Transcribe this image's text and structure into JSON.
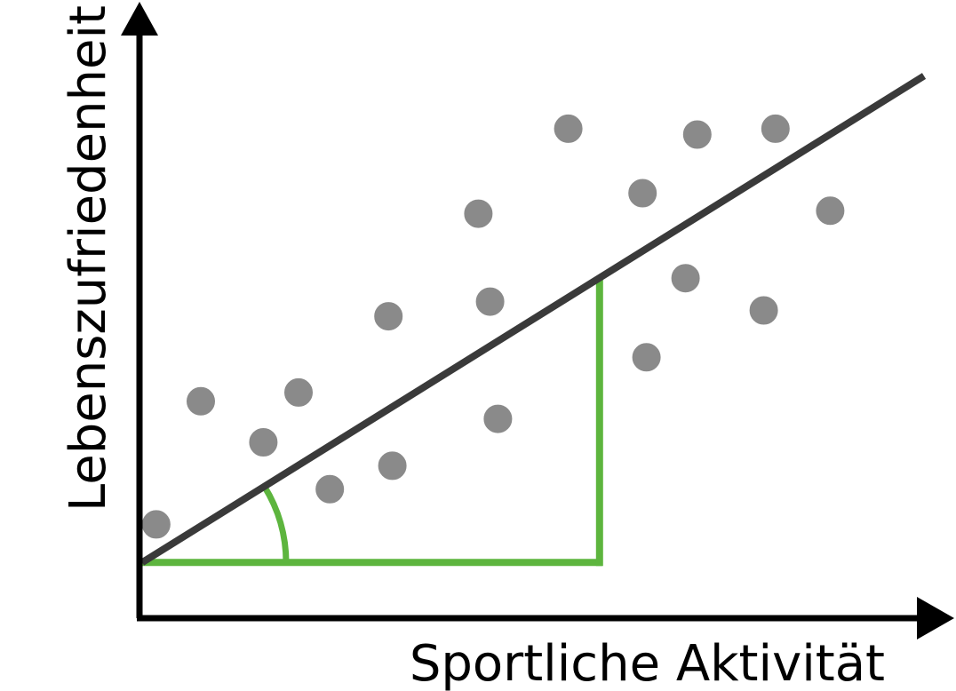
{
  "chart_data": {
    "type": "scatter",
    "xlabel": "Sportliche Aktivität",
    "ylabel": "Lebenszufriedenheit",
    "grid": false,
    "ticks": false,
    "xlim": [
      0,
      100
    ],
    "ylim": [
      0,
      100
    ],
    "points": [
      {
        "x": 1.8,
        "y": 16.0
      },
      {
        "x": 7.5,
        "y": 37.0
      },
      {
        "x": 15.5,
        "y": 30.0
      },
      {
        "x": 20.0,
        "y": 38.5
      },
      {
        "x": 24.0,
        "y": 22.0
      },
      {
        "x": 32.0,
        "y": 26.0
      },
      {
        "x": 31.5,
        "y": 51.5
      },
      {
        "x": 43.0,
        "y": 69.0
      },
      {
        "x": 44.5,
        "y": 54.0
      },
      {
        "x": 45.5,
        "y": 34.0
      },
      {
        "x": 54.5,
        "y": 83.5
      },
      {
        "x": 64.0,
        "y": 72.5
      },
      {
        "x": 64.5,
        "y": 44.5
      },
      {
        "x": 69.5,
        "y": 58.0
      },
      {
        "x": 71.0,
        "y": 82.5
      },
      {
        "x": 79.5,
        "y": 52.5
      },
      {
        "x": 81.0,
        "y": 83.5
      },
      {
        "x": 88.0,
        "y": 69.5
      }
    ],
    "regression_line": {
      "x": [
        0,
        100
      ],
      "y": [
        9.5,
        92.5
      ]
    },
    "slope_triangle": {
      "x_start": 0,
      "x_end": 58.5
    }
  },
  "colors": {
    "axes": "#000000",
    "points": "#8a8a8a",
    "regression_line": "#3a3a3a",
    "slope_triangle": "#5db53e"
  }
}
